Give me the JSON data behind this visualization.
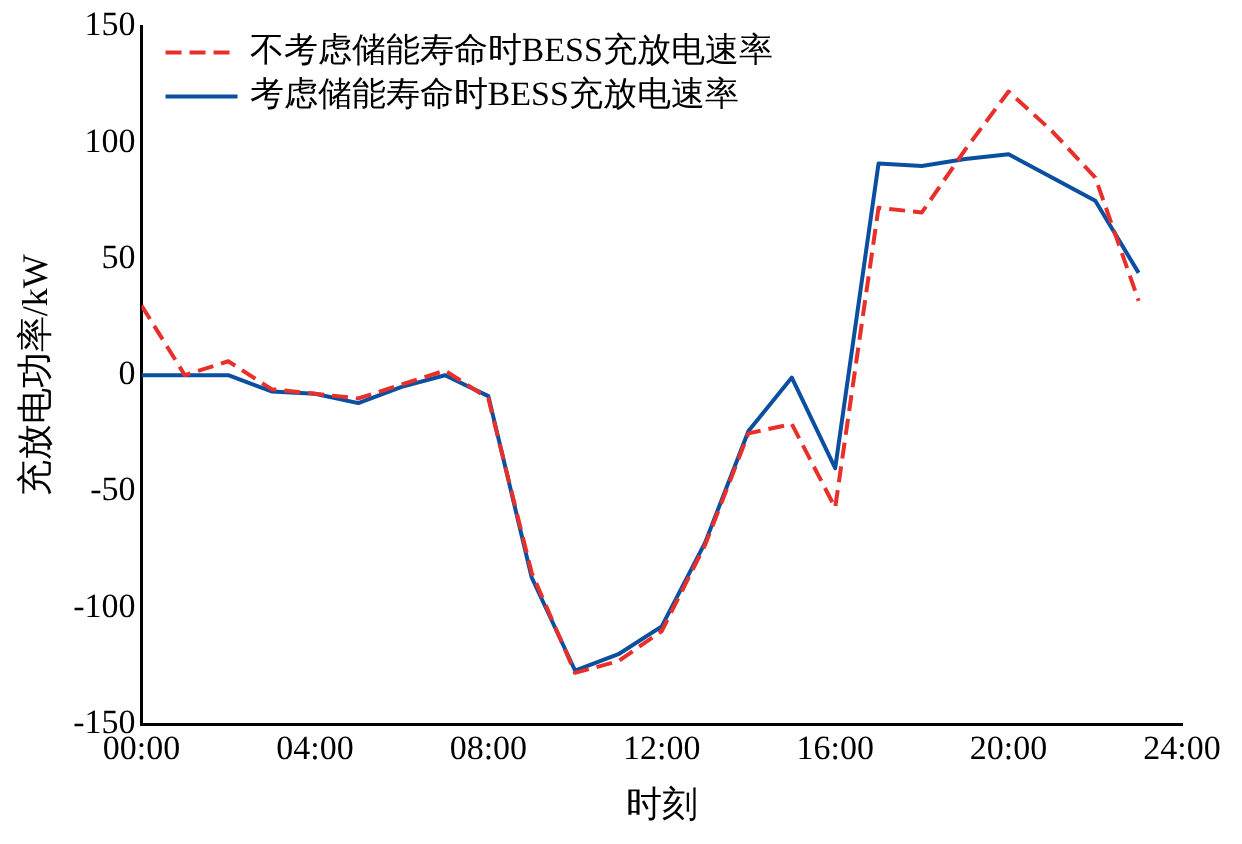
{
  "chart_data": {
    "type": "line",
    "xlabel": "时刻",
    "ylabel": "充放电功率/kW",
    "x": [
      0,
      1,
      2,
      3,
      4,
      5,
      6,
      7,
      8,
      9,
      10,
      11,
      12,
      13,
      14,
      15,
      16,
      17,
      18,
      19,
      20,
      21,
      22,
      23
    ],
    "series": [
      {
        "name": "不考虑储能寿命时BESS充放电速率",
        "color": "#e8302a",
        "line_style": "dashed",
        "values": [
          30,
          0,
          6,
          -6,
          -8,
          -10,
          -4,
          2,
          -10,
          -85,
          -128,
          -123,
          -110,
          -73,
          -25,
          -21,
          -57,
          72,
          70,
          97,
          122,
          105,
          85,
          32
        ]
      },
      {
        "name": "考虑储能寿命时BESS充放电速率",
        "color": "#0a4fa0",
        "line_style": "solid",
        "values": [
          0,
          0,
          0,
          -7,
          -8,
          -12,
          -5,
          0,
          -9,
          -87,
          -127,
          -120,
          -108,
          -72,
          -24,
          -1,
          -40,
          91,
          90,
          93,
          95,
          85,
          75,
          44
        ]
      }
    ],
    "xlim": [
      0,
      24
    ],
    "xticks": [
      {
        "value": 0,
        "label": "00:00"
      },
      {
        "value": 4,
        "label": "04:00"
      },
      {
        "value": 8,
        "label": "08:00"
      },
      {
        "value": 12,
        "label": "12:00"
      },
      {
        "value": 16,
        "label": "16:00"
      },
      {
        "value": 20,
        "label": "20:00"
      },
      {
        "value": 24,
        "label": "24:00"
      }
    ],
    "ylim": [
      -150,
      150
    ],
    "yticks": [
      -150,
      -100,
      -50,
      0,
      50,
      100,
      150
    ],
    "grid": false,
    "legend": "top left",
    "marker": "none"
  }
}
